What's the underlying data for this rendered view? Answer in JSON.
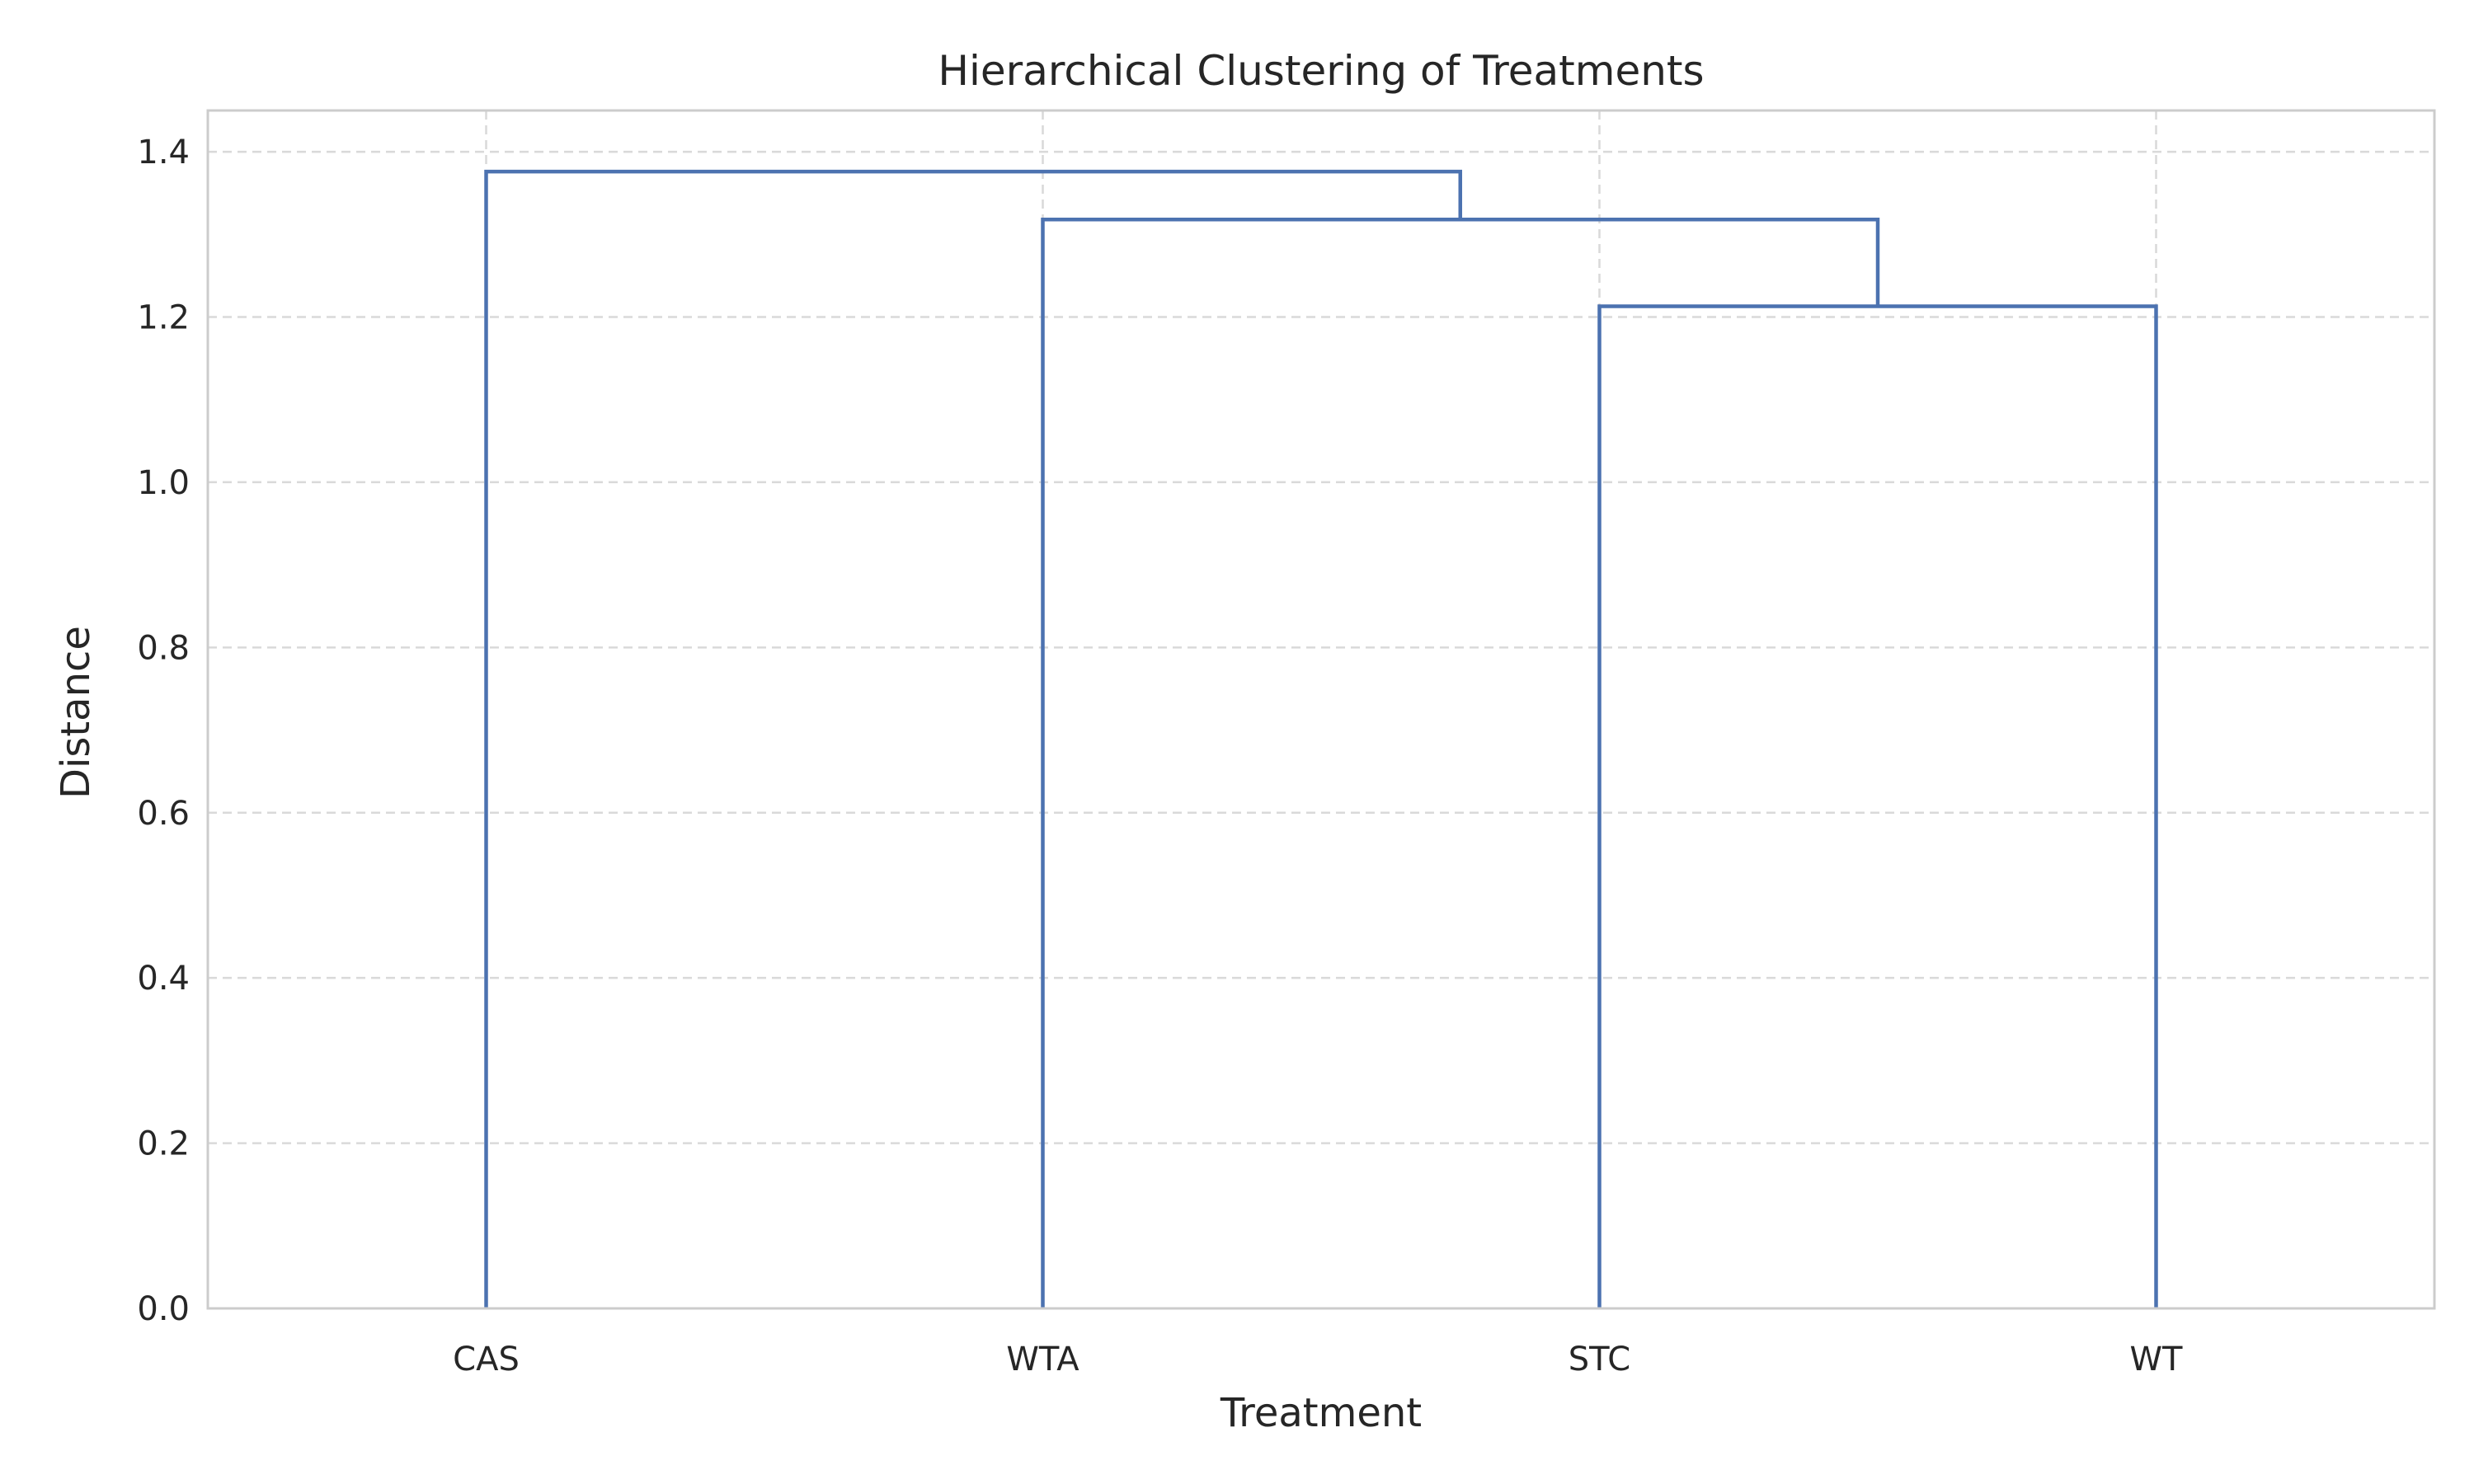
{
  "chart_data": {
    "type": "dendrogram",
    "title": "Hierarchical Clustering of Treatments",
    "xlabel": "Treatment",
    "ylabel": "Distance",
    "ylim": [
      0,
      1.45
    ],
    "yticks": [
      "0.0",
      "0.2",
      "0.4",
      "0.6",
      "0.8",
      "1.0",
      "1.2",
      "1.4"
    ],
    "leaves": [
      "CAS",
      "WTA",
      "STC",
      "WT"
    ],
    "merges": [
      {
        "left": "STC",
        "right": "WT",
        "height": 1.213
      },
      {
        "left": "WTA",
        "right": "STC+WT",
        "height": 1.318
      },
      {
        "left": "CAS",
        "right": "WTA+STC+WT",
        "height": 1.376
      }
    ],
    "grid": true,
    "line_color": "#4c72b0"
  }
}
